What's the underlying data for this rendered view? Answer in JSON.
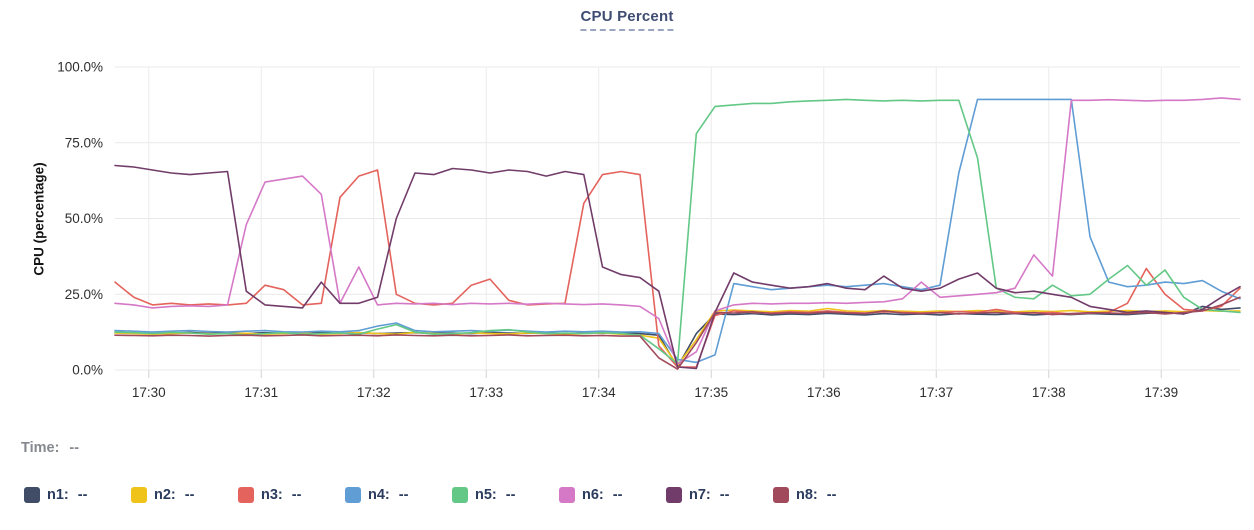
{
  "title": "CPU Percent",
  "chart_data": {
    "type": "line",
    "title": "CPU Percent",
    "xlabel": "",
    "ylabel": "CPU (percentage)",
    "ylim": [
      0,
      100
    ],
    "x_range": [
      29.7,
      39.7
    ],
    "grid": true,
    "legend_position": "bottom",
    "yticks": [
      {
        "value": 0,
        "label": "0.0%"
      },
      {
        "value": 25,
        "label": "25.0%"
      },
      {
        "value": 50,
        "label": "50.0%"
      },
      {
        "value": 75,
        "label": "75.0%"
      },
      {
        "value": 100,
        "label": "100.0%"
      }
    ],
    "xticks": [
      {
        "value": 30,
        "label": "17:30"
      },
      {
        "value": 31,
        "label": "17:31"
      },
      {
        "value": 32,
        "label": "17:32"
      },
      {
        "value": 33,
        "label": "17:33"
      },
      {
        "value": 34,
        "label": "17:34"
      },
      {
        "value": 35,
        "label": "17:35"
      },
      {
        "value": 36,
        "label": "17:36"
      },
      {
        "value": 37,
        "label": "17:37"
      },
      {
        "value": 38,
        "label": "17:38"
      },
      {
        "value": 39,
        "label": "17:39"
      }
    ],
    "x_unit": "time (HH:MM), points every 10s",
    "series": [
      {
        "name": "n1",
        "color": "#414d66",
        "values": [
          12.3,
          12.2,
          12.0,
          12.2,
          12.4,
          12.1,
          12.2,
          12.0,
          12.3,
          12.1,
          12.2,
          12.4,
          12.1,
          12.3,
          12.0,
          12.2,
          12.3,
          12.1,
          12.2,
          12.0,
          12.3,
          12.2,
          12.1,
          12.3,
          12.0,
          12.2,
          12.1,
          12.3,
          12.0,
          11.5,
          1.0,
          12.0,
          18.5,
          18.3,
          18.6,
          18.2,
          18.5,
          18.3,
          18.7,
          18.4,
          18.2,
          18.6,
          18.3,
          18.5,
          18.2,
          18.6,
          18.4,
          18.3,
          18.6,
          18.2,
          18.5,
          18.3,
          18.6,
          18.4,
          18.3,
          18.7,
          19.0,
          18.5,
          21.0,
          20.0,
          20.5
        ]
      },
      {
        "name": "n2",
        "color": "#efc319",
        "values": [
          12.2,
          12.0,
          11.8,
          12.0,
          12.2,
          11.9,
          12.0,
          12.1,
          11.8,
          12.0,
          12.2,
          11.8,
          12.0,
          12.3,
          12.0,
          11.8,
          12.4,
          12.0,
          11.8,
          12.2,
          12.0,
          11.9,
          12.2,
          12.0,
          11.8,
          12.0,
          12.2,
          11.8,
          11.5,
          10.5,
          1.5,
          10.0,
          19.5,
          19.8,
          19.5,
          19.2,
          19.6,
          19.4,
          20.3,
          19.5,
          19.3,
          19.6,
          19.4,
          19.2,
          19.5,
          19.3,
          19.6,
          19.4,
          19.2,
          19.5,
          19.3,
          19.6,
          19.2,
          19.4,
          19.6,
          19.3,
          19.5,
          19.2,
          19.6,
          19.4,
          19.5
        ]
      },
      {
        "name": "n3",
        "color": "#e4635c",
        "values": [
          29,
          24,
          21.5,
          22,
          21.5,
          21.8,
          21.5,
          22,
          28,
          26.5,
          21.5,
          22,
          57,
          64,
          66,
          25,
          22,
          21.5,
          22,
          28,
          30,
          23,
          21.5,
          21.8,
          22,
          55,
          64.5,
          65.5,
          64.5,
          8,
          1,
          1,
          18,
          19.5,
          19,
          18.8,
          19.2,
          19,
          19.5,
          19,
          18.8,
          19.2,
          19,
          18.8,
          19,
          19.3,
          19,
          20,
          19,
          18.8,
          19,
          18.5,
          18.8,
          19,
          22,
          33.5,
          25,
          20,
          19.5,
          21,
          27
        ]
      },
      {
        "name": "n4",
        "color": "#5f9dd4",
        "values": [
          13,
          12.8,
          12.5,
          12.8,
          13,
          12.7,
          12.5,
          12.8,
          13,
          12.6,
          12.5,
          12.8,
          12.6,
          13,
          14.5,
          15.5,
          13,
          12.6,
          12.8,
          13,
          12.7,
          13.2,
          12.8,
          12.5,
          12.8,
          12.6,
          12.8,
          12.5,
          12.6,
          12,
          3.5,
          2.5,
          5,
          28.5,
          27.5,
          26.5,
          27,
          27.5,
          28,
          27.5,
          28,
          28.5,
          27.5,
          26.5,
          28,
          65,
          89.3,
          89.3,
          89.3,
          89.3,
          89.3,
          89.3,
          44,
          29,
          27.5,
          28,
          29,
          28.5,
          29.5,
          26,
          23.5
        ]
      },
      {
        "name": "n5",
        "color": "#63c886",
        "values": [
          12.5,
          12.3,
          12,
          12.4,
          12.2,
          11.8,
          12,
          11.5,
          12,
          12.3,
          11.8,
          12,
          12.2,
          11.8,
          13.5,
          15,
          12.5,
          11.8,
          12,
          12.3,
          13,
          13.3,
          12.5,
          12,
          12.2,
          12,
          12.3,
          12,
          11.5,
          7,
          2,
          78,
          87,
          87.5,
          88,
          88,
          88.5,
          88.8,
          89,
          89.3,
          89,
          88.8,
          89,
          88.8,
          89,
          89,
          70,
          27,
          24,
          23.5,
          28,
          24.5,
          25,
          30,
          34.5,
          28,
          33,
          24,
          20,
          19.5,
          19
        ]
      },
      {
        "name": "n6",
        "color": "#d579c7",
        "values": [
          22,
          21.5,
          20.5,
          21,
          21.2,
          21,
          21.5,
          48,
          62,
          63,
          64,
          58,
          22,
          34,
          21.5,
          22,
          21.8,
          22,
          21.6,
          22,
          21.8,
          22,
          21.7,
          22,
          21.8,
          21.6,
          21.8,
          21.5,
          21,
          17,
          2,
          6,
          19.5,
          21.5,
          22,
          21.8,
          22,
          22,
          22.2,
          22,
          22.3,
          22.5,
          23.5,
          29,
          24,
          24.5,
          25,
          25.5,
          27,
          38,
          31,
          89,
          89,
          89.2,
          89,
          88.8,
          89,
          89,
          89.3,
          89.8,
          89.3
        ]
      },
      {
        "name": "n7",
        "color": "#713c69",
        "values": [
          67.5,
          67,
          66,
          65,
          64.5,
          65,
          65.5,
          26,
          21.5,
          21,
          20.5,
          29,
          22,
          22,
          24,
          50,
          65,
          64.5,
          66.5,
          66,
          65,
          66,
          65.5,
          64,
          65.5,
          64.5,
          34,
          31.5,
          30.5,
          26,
          1,
          0.5,
          19,
          32,
          29,
          28,
          27,
          27.5,
          28.5,
          27,
          26.5,
          31,
          27,
          26,
          27,
          30,
          32,
          27,
          25.5,
          26,
          25,
          24,
          21,
          20,
          19,
          19.5,
          19,
          18.5,
          20,
          24,
          27.5
        ]
      },
      {
        "name": "n8",
        "color": "#a14a5c",
        "values": [
          11.5,
          11.4,
          11.3,
          11.5,
          11.4,
          11.2,
          11.4,
          11.5,
          11.3,
          11.4,
          11.6,
          11.3,
          11.4,
          11.5,
          11.3,
          11.6,
          11.4,
          11.3,
          11.5,
          11.3,
          11.4,
          11.6,
          11.3,
          11.4,
          11.5,
          11.3,
          11.4,
          11.2,
          11.2,
          4,
          0.3,
          9,
          19,
          18.8,
          19.2,
          18.6,
          18.9,
          18.7,
          19.1,
          18.8,
          18.6,
          19.5,
          18.8,
          18.6,
          18.9,
          18.5,
          18.8,
          19,
          18.6,
          18.9,
          18.3,
          18.6,
          18.9,
          18.8,
          18.6,
          19,
          18.5,
          19,
          19.5,
          21.5,
          24
        ]
      }
    ]
  },
  "footer": {
    "time_label": "Time:",
    "time_value": "--",
    "legend": [
      {
        "name": "n1",
        "label": "n1:",
        "value": "--"
      },
      {
        "name": "n2",
        "label": "n2:",
        "value": "--"
      },
      {
        "name": "n3",
        "label": "n3:",
        "value": "--"
      },
      {
        "name": "n4",
        "label": "n4:",
        "value": "--"
      },
      {
        "name": "n5",
        "label": "n5:",
        "value": "--"
      },
      {
        "name": "n6",
        "label": "n6:",
        "value": "--"
      },
      {
        "name": "n7",
        "label": "n7:",
        "value": "--"
      },
      {
        "name": "n8",
        "label": "n8:",
        "value": "--"
      }
    ]
  }
}
